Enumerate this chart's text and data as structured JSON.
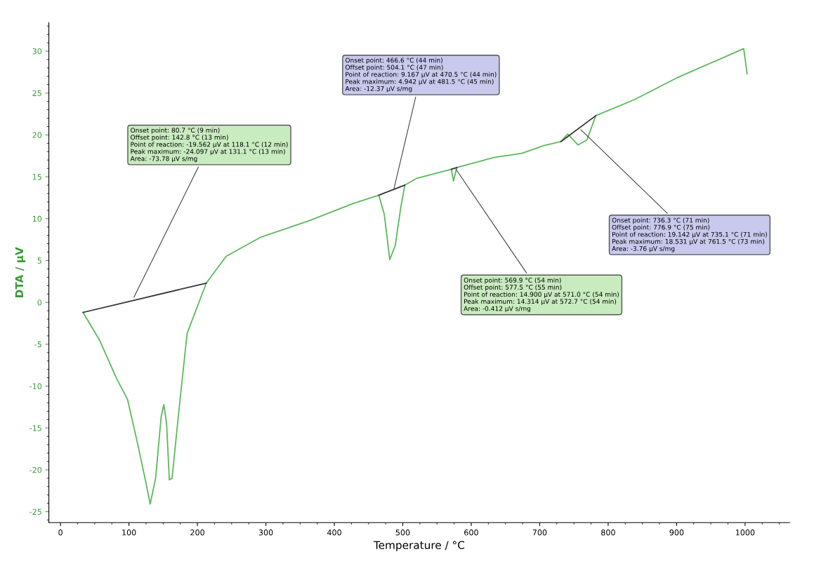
{
  "chart_data": {
    "type": "line",
    "xlabel": "Temperature / °C",
    "ylabel": "DTA / µV",
    "xlim": [
      -17,
      1065
    ],
    "ylim": [
      -26.3,
      33.4
    ],
    "xticks": [
      0,
      100,
      200,
      300,
      400,
      500,
      600,
      700,
      800,
      900,
      1000
    ],
    "yticks": [
      -25,
      -20,
      -15,
      -10,
      -5,
      0,
      5,
      10,
      15,
      20,
      25,
      30
    ],
    "grid": false,
    "marker": "none",
    "line_style": "solid",
    "series": [
      {
        "color": "#5cb85c",
        "x": [
          33,
          57,
          82,
          98,
          113,
          126,
          131,
          139,
          147,
          151,
          155,
          159,
          163,
          172,
          185,
          213,
          242,
          293,
          365,
          427,
          465,
          473,
          481,
          489,
          497,
          503,
          520,
          571,
          574,
          579,
          633,
          674,
          705,
          731,
          741,
          756,
          769,
          782,
          838,
          900,
          998,
          1003
        ],
        "values": [
          -1.2,
          -4.5,
          -9.1,
          -11.6,
          -17,
          -22,
          -24.1,
          -21,
          -13.7,
          -12.2,
          -14.5,
          -21.2,
          -21,
          -13.7,
          -3.7,
          2.3,
          5.5,
          7.8,
          9.8,
          11.8,
          12.8,
          10.5,
          5.1,
          6.8,
          11.3,
          14,
          14.8,
          15.9,
          14.5,
          16.1,
          17.3,
          17.8,
          18.7,
          19.2,
          20.1,
          18.8,
          19.4,
          22.3,
          24.2,
          26.8,
          30.3,
          27.3
        ]
      },
      {
        "color": "#333333",
        "x": [
          33,
          213
        ],
        "values": [
          -1.2,
          2.3
        ]
      },
      {
        "color": "#333333",
        "x": [
          465,
          503
        ],
        "values": [
          12.8,
          14
        ]
      },
      {
        "color": "#333333",
        "x": [
          571,
          579
        ],
        "values": [
          15.9,
          16.1
        ]
      },
      {
        "color": "#333333",
        "x": [
          731,
          782
        ],
        "values": [
          19.2,
          22.3
        ]
      }
    ],
    "annotations": [
      {
        "text": "Onset point: 80.7 °C (9 min)\nOffset point: 142.8 °C (13 min)\nPoint of reaction: -19.562 µV at 118.1 °C (12 min)\nPeak maximum: -24.097 µV at 131.1 °C (13 min)\nArea: -73.78 µV s/mg",
        "x": 106,
        "y": 0.4
      },
      {
        "text": "Onset point: 466.6 °C (44 min)\nOffset point: 504.1 °C (47 min)\nPoint of reaction: 9.167 µV at 470.5 °C (44 min)\nPeak maximum: 4.942 µV at 481.5 °C (45 min)\nArea: -12.37 µV s/mg",
        "x": 486,
        "y": 13.2
      },
      {
        "text": "Onset point: 569.9 °C (54 min)\nOffset point: 577.5 °C (55 min)\nPoint of reaction: 14.900 µV at 571.0 °C (54 min)\nPeak maximum: 14.314 µV at 572.7 °C (54 min)\nArea: -0.412 µV s/mg",
        "x": 576,
        "y": 16.1
      },
      {
        "text": "Onset point: 736.3 °C (71 min)\nOffset point: 776.9 °C (75 min)\nPoint of reaction: 19.142 µV at 735.1 °C (71 min)\nPeak maximum: 18.531 µV at 761.5 °C (73 min)\nArea: -3.76 µV s/mg",
        "x": 758,
        "y": 20.8
      }
    ]
  }
}
